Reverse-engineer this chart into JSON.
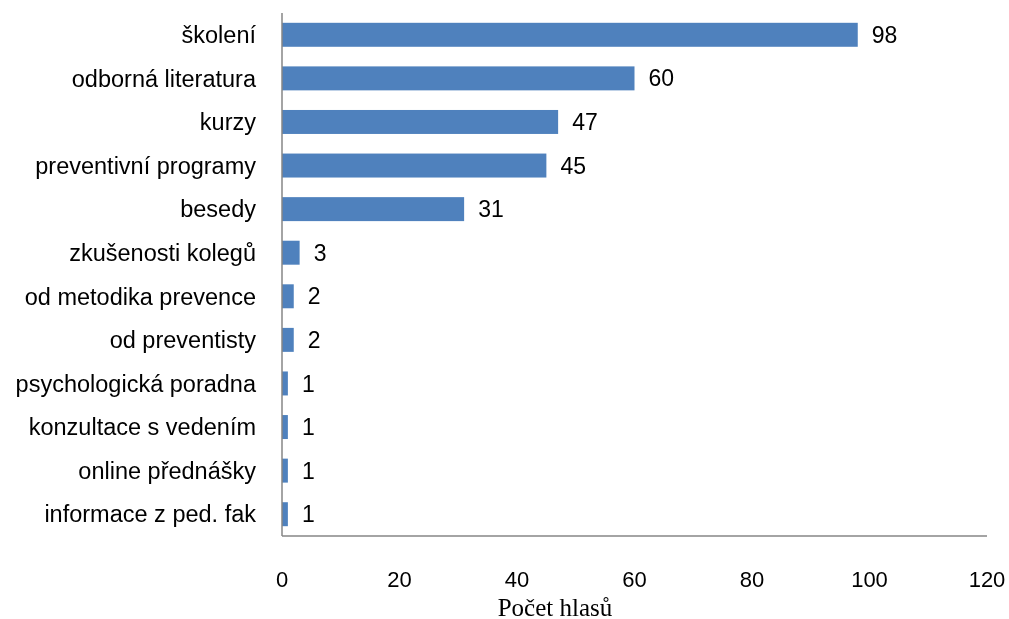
{
  "chart_data": {
    "type": "bar",
    "orientation": "horizontal",
    "categories": [
      "školení",
      "odborná literatura",
      "kurzy",
      "preventivní programy",
      "besedy",
      "zkušenosti kolegů",
      "od metodika prevence",
      "od preventisty",
      "psychologická poradna",
      "konzultace s vedením",
      "online přednášky",
      "informace z ped. fak"
    ],
    "values": [
      98,
      60,
      47,
      45,
      31,
      3,
      2,
      2,
      1,
      1,
      1,
      1
    ],
    "color": "#4f81bd",
    "xlabel": "Počet hlasů",
    "xlim": [
      0,
      120
    ],
    "xticks": [
      0,
      20,
      40,
      60,
      80,
      100,
      120
    ],
    "grid": false,
    "data_labels": true
  }
}
